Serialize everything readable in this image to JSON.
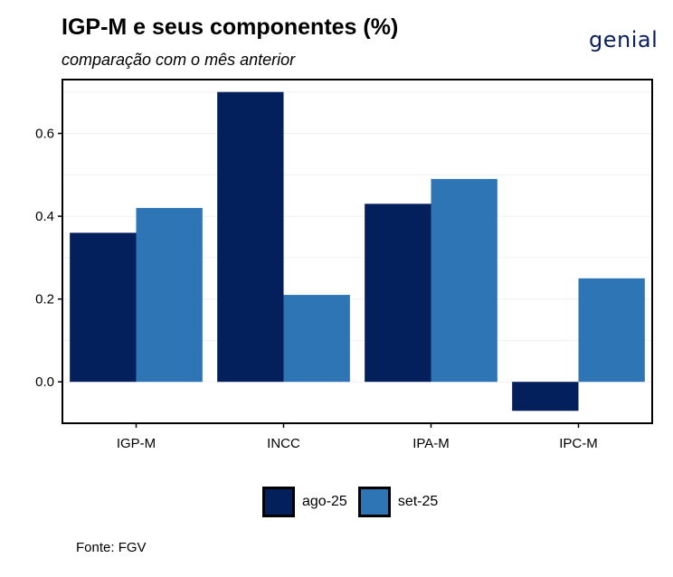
{
  "header": {
    "title": "IGP-M e seus componentes (%)",
    "subtitle": "comparação com o mês anterior",
    "logo_text": "genial"
  },
  "footer": {
    "source": "Fonte: FGV"
  },
  "colors": {
    "ago-25": "#04205c",
    "set-25": "#2e75b6"
  },
  "chart_data": {
    "type": "bar",
    "title": "IGP-M e seus componentes (%)",
    "subtitle": "comparação com o mês anterior",
    "categories": [
      "IGP-M",
      "INCC",
      "IPA-M",
      "IPC-M"
    ],
    "series": [
      {
        "name": "ago-25",
        "values": [
          0.36,
          0.7,
          0.43,
          -0.07
        ]
      },
      {
        "name": "set-25",
        "values": [
          0.42,
          0.21,
          0.49,
          0.25
        ]
      }
    ],
    "yticks": [
      0.0,
      0.2,
      0.4,
      0.6
    ],
    "ytick_labels": [
      "0.0",
      "0.2",
      "0.4",
      "0.6"
    ],
    "ylim": [
      -0.1,
      0.73
    ],
    "grid": true,
    "legend_position": "bottom"
  }
}
